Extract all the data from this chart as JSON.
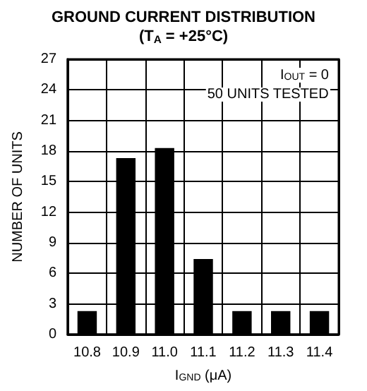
{
  "chart_data": {
    "type": "bar",
    "title": "GROUND CURRENT DISTRIBUTION",
    "subtitle": "(T$_{A}$ = +25°C)",
    "xlabel": "I$_{GND}$ (μA)",
    "ylabel": "NUMBER OF UNITS",
    "annotations": [
      "I$_{OUT}$ = 0",
      "50 UNITS TESTED"
    ],
    "categories": [
      "10.8",
      "10.9",
      "11.0",
      "11.1",
      "11.2",
      "11.3",
      "11.4"
    ],
    "values": [
      2.3,
      17.3,
      18.3,
      7.4,
      2.3,
      2.3,
      2.3
    ],
    "color": "#000000",
    "ylim": [
      0,
      27
    ],
    "yticks": [
      0,
      3,
      6,
      9,
      12,
      15,
      18,
      21,
      24,
      27
    ],
    "grid": true
  }
}
